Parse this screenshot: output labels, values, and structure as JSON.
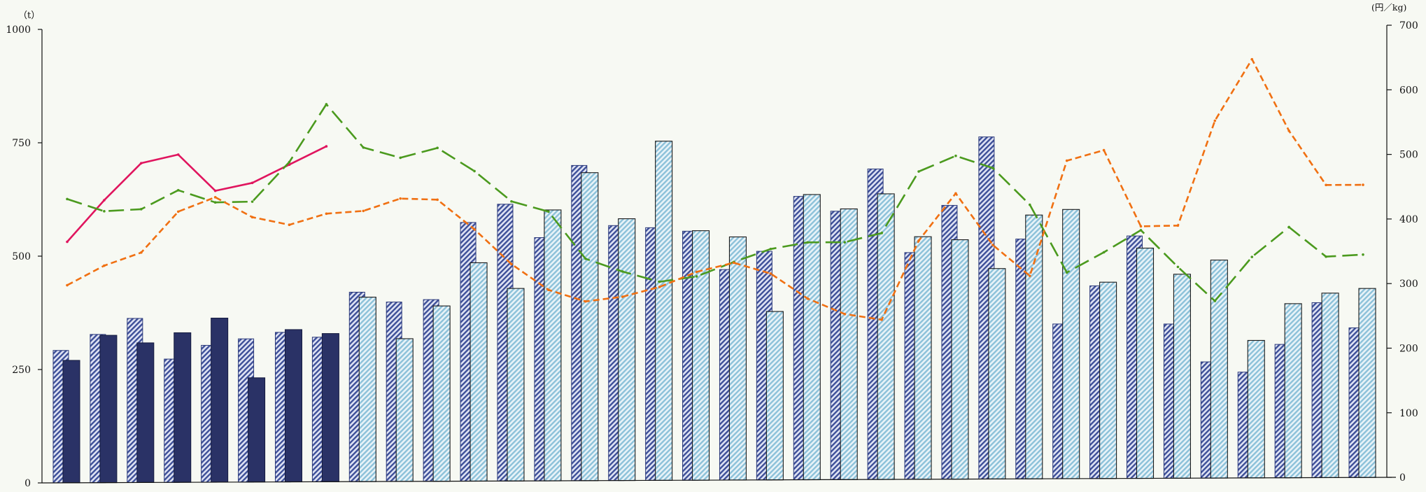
{
  "chart_data": {
    "type": "bar",
    "left_axis": {
      "unit": "（t）",
      "ticks": [
        "0",
        "250",
        "500",
        "750",
        "1000"
      ],
      "range": [
        0,
        1000
      ]
    },
    "right_axis": {
      "unit": "(円／kg)",
      "ticks": [
        "0",
        "100",
        "200",
        "300",
        "400",
        "500",
        "600",
        "700"
      ],
      "range": [
        0,
        700
      ]
    },
    "grid": false,
    "bar_groups": [
      {
        "a": 292,
        "b": 270,
        "b_style": "dark"
      },
      {
        "a": 327,
        "b": 325,
        "b_style": "dark"
      },
      {
        "a": 362,
        "b": 308,
        "b_style": "dark"
      },
      {
        "a": 272,
        "b": 330,
        "b_style": "dark"
      },
      {
        "a": 302,
        "b": 362,
        "b_style": "dark"
      },
      {
        "a": 316,
        "b": 230,
        "b_style": "dark"
      },
      {
        "a": 330,
        "b": 336,
        "b_style": "dark"
      },
      {
        "a": 319,
        "b": 327,
        "b_style": "dark"
      },
      {
        "a": 418,
        "b": 407,
        "b_style": "light"
      },
      {
        "a": 396,
        "b": 315,
        "b_style": "light"
      },
      {
        "a": 401,
        "b": 387,
        "b_style": "light"
      },
      {
        "a": 571,
        "b": 482,
        "b_style": "light"
      },
      {
        "a": 611,
        "b": 425,
        "b_style": "light"
      },
      {
        "a": 537,
        "b": 598,
        "b_style": "light"
      },
      {
        "a": 696,
        "b": 680,
        "b_style": "light"
      },
      {
        "a": 563,
        "b": 578,
        "b_style": "light"
      },
      {
        "a": 558,
        "b": 749,
        "b_style": "light"
      },
      {
        "a": 550,
        "b": 551,
        "b_style": "light"
      },
      {
        "a": 465,
        "b": 537,
        "b_style": "light"
      },
      {
        "a": 505,
        "b": 372,
        "b_style": "light"
      },
      {
        "a": 626,
        "b": 630,
        "b_style": "light"
      },
      {
        "a": 593,
        "b": 598,
        "b_style": "light"
      },
      {
        "a": 686,
        "b": 631,
        "b_style": "light"
      },
      {
        "a": 501,
        "b": 536,
        "b_style": "light"
      },
      {
        "a": 605,
        "b": 529,
        "b_style": "light"
      },
      {
        "a": 756,
        "b": 465,
        "b_style": "light"
      },
      {
        "a": 530,
        "b": 583,
        "b_style": "light"
      },
      {
        "a": 342,
        "b": 595,
        "b_style": "light"
      },
      {
        "a": 426,
        "b": 434,
        "b_style": "light"
      },
      {
        "a": 536,
        "b": 509,
        "b_style": "light"
      },
      {
        "a": 341,
        "b": 451,
        "b_style": "light"
      },
      {
        "a": 257,
        "b": 482,
        "b_style": "light"
      },
      {
        "a": 234,
        "b": 304,
        "b_style": "light"
      },
      {
        "a": 295,
        "b": 385,
        "b_style": "light"
      },
      {
        "a": 387,
        "b": 408,
        "b_style": "light"
      },
      {
        "a": 331,
        "b": 418,
        "b_style": "light"
      }
    ],
    "series": [
      {
        "style": "solid",
        "color": "#e0155e",
        "axis": "right",
        "values": [
          372,
          436,
          493,
          506,
          450,
          462,
          490,
          518
        ]
      },
      {
        "style": "long-dash",
        "color": "#4b9a1e",
        "axis": "right",
        "values": [
          438,
          419,
          422,
          451,
          432,
          433,
          494,
          583,
          516,
          500,
          515,
          479,
          432,
          416,
          343,
          323,
          307,
          315,
          337,
          357,
          367,
          367,
          381,
          476,
          500,
          481,
          424,
          319,
          350,
          384,
          327,
          274,
          342,
          388,
          342,
          345
        ]
      },
      {
        "style": "short-dash",
        "color": "#f07012",
        "axis": "right",
        "values": [
          305,
          335,
          355,
          418,
          440,
          409,
          397,
          414,
          418,
          437,
          435,
          389,
          335,
          295,
          277,
          284,
          299,
          322,
          336,
          319,
          280,
          256,
          247,
          369,
          442,
          362,
          314,
          492,
          508,
          390,
          391,
          553,
          648,
          537,
          453,
          453
        ]
      }
    ]
  }
}
